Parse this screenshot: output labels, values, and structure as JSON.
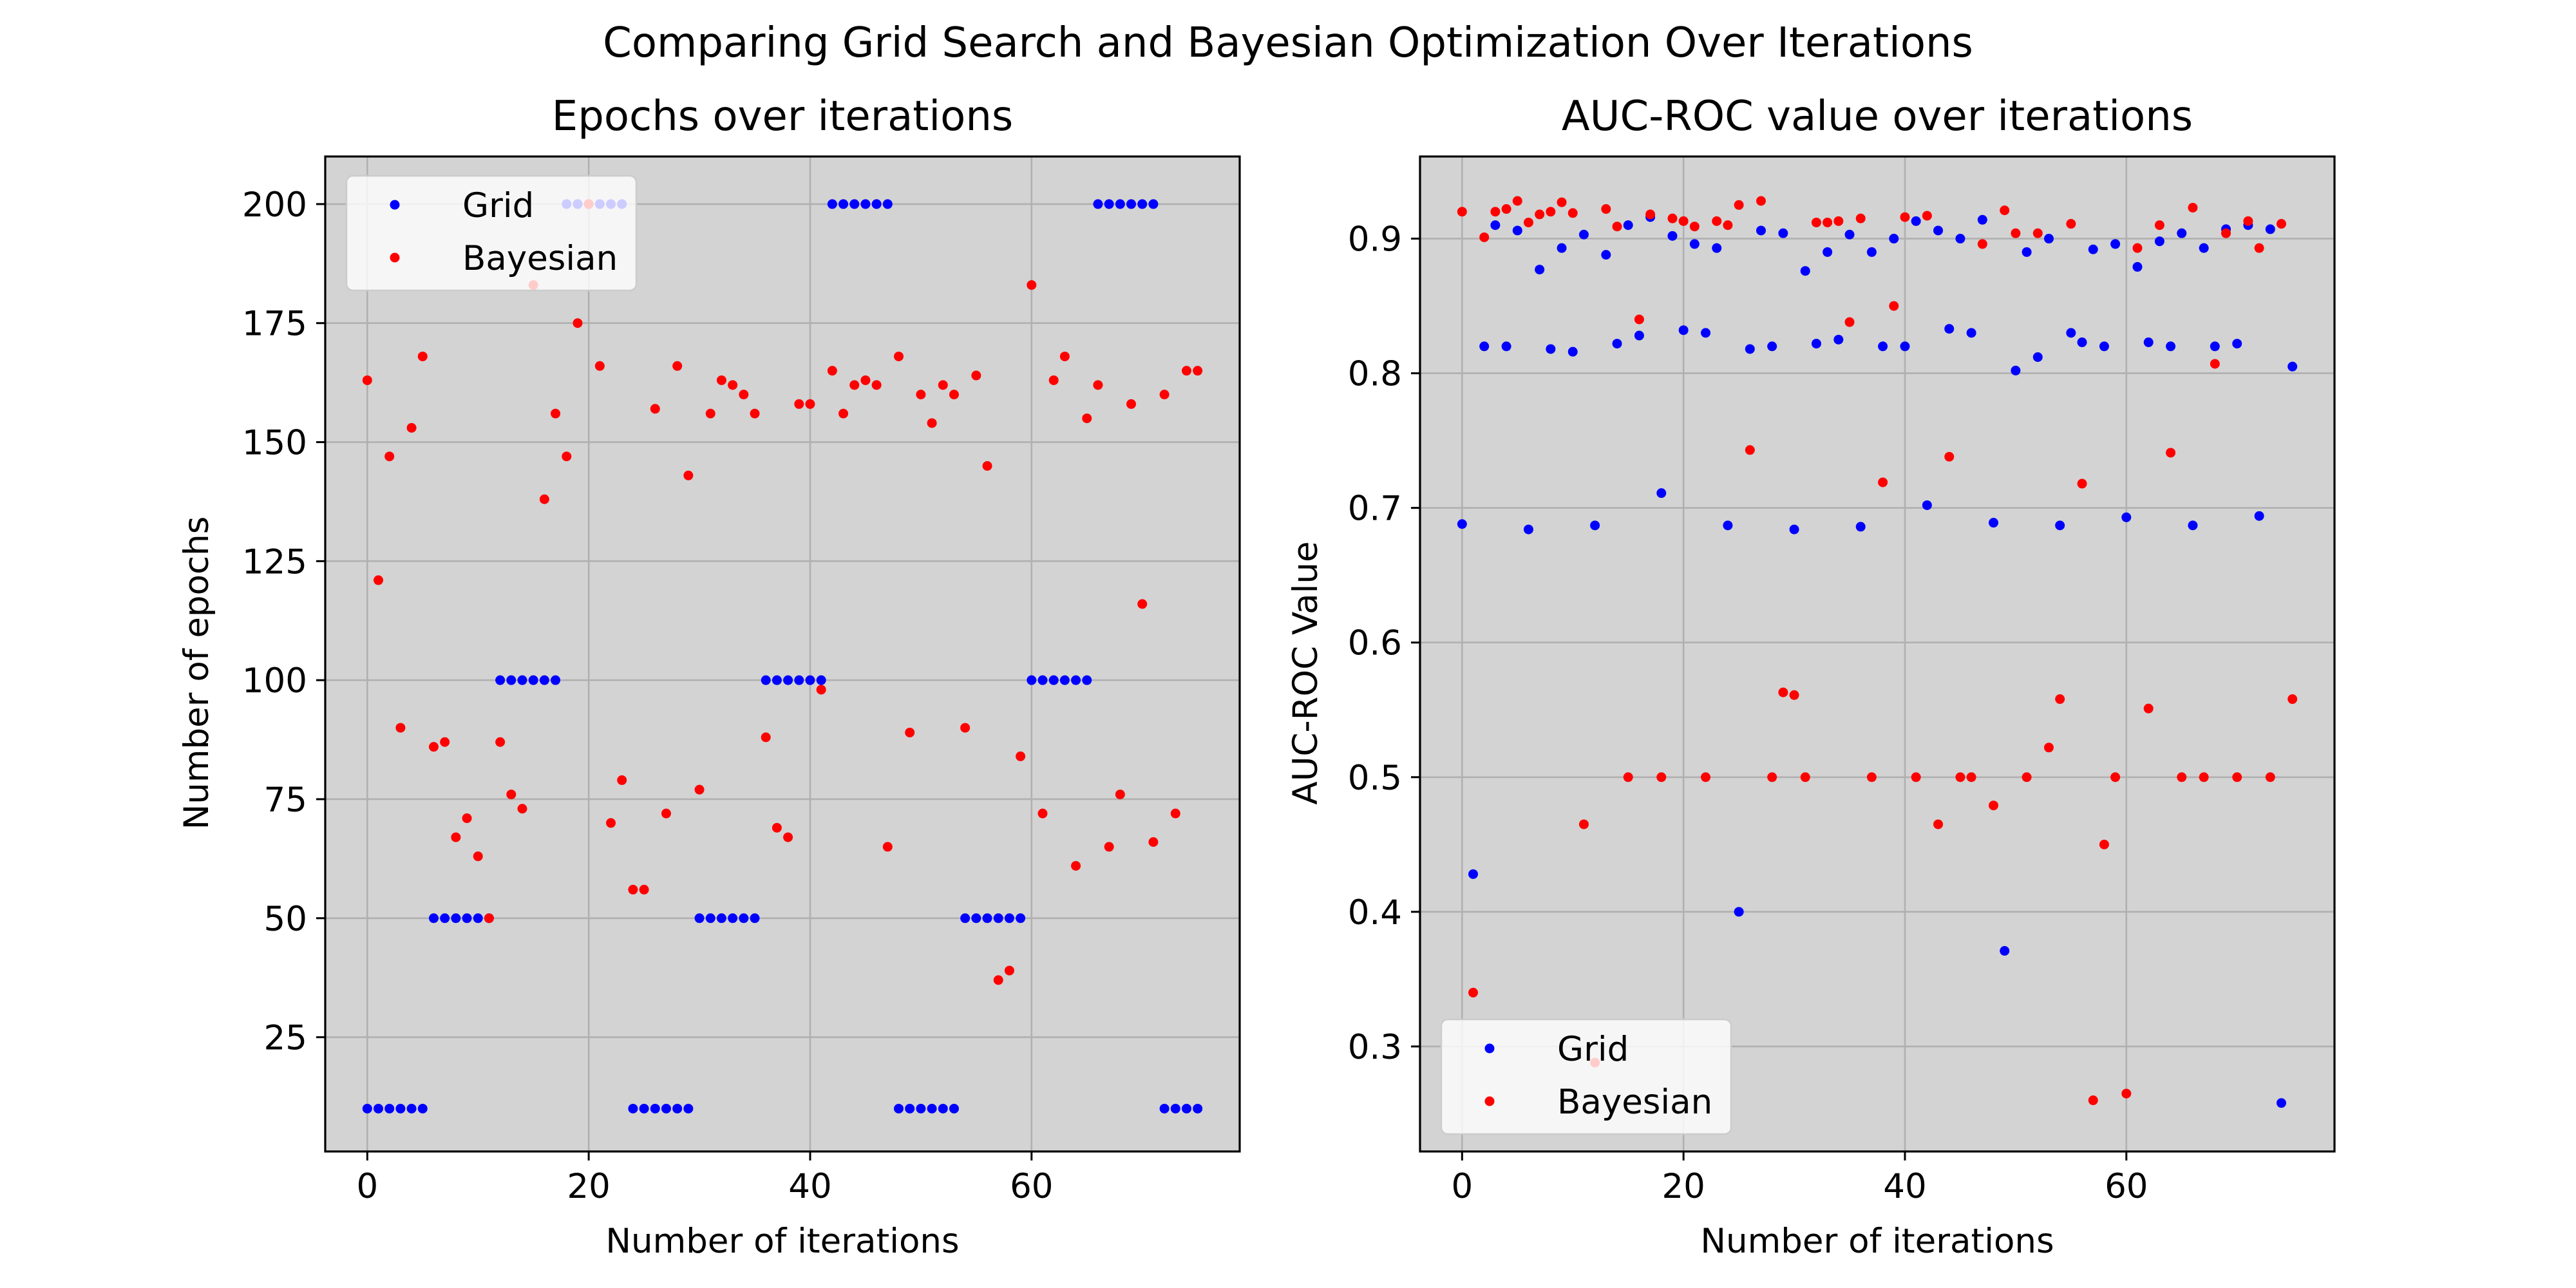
{
  "figure_title": "Comparing Grid Search and Bayesian Optimization Over Iterations",
  "colors": {
    "grid": "#0000ff",
    "bayesian": "#ff0000",
    "axes_bg": "#d3d3d3",
    "gridline": "#b0b0b0"
  },
  "chart_data": [
    {
      "type": "scatter",
      "title": "Epochs over iterations",
      "xlabel": "Number of iterations",
      "ylabel": "Number of epochs",
      "xlim": [
        -3.8,
        78.8
      ],
      "ylim": [
        1,
        210
      ],
      "xticks": [
        0,
        20,
        40,
        60
      ],
      "yticks": [
        25,
        50,
        75,
        100,
        125,
        150,
        175,
        200
      ],
      "grid": true,
      "legend": "top-left",
      "series": [
        {
          "name": "Grid",
          "color": "#0000ff",
          "x": [
            0,
            1,
            2,
            3,
            4,
            5,
            6,
            7,
            8,
            9,
            10,
            11,
            12,
            13,
            14,
            15,
            16,
            17,
            18,
            19,
            20,
            21,
            22,
            23,
            24,
            25,
            26,
            27,
            28,
            29,
            30,
            31,
            32,
            33,
            34,
            35,
            36,
            37,
            38,
            39,
            40,
            41,
            42,
            43,
            44,
            45,
            46,
            47,
            48,
            49,
            50,
            51,
            52,
            53,
            54,
            55,
            56,
            57,
            58,
            59,
            60,
            61,
            62,
            63,
            64,
            65,
            66,
            67,
            68,
            69,
            70,
            71,
            72,
            73,
            74,
            75
          ],
          "y": [
            10,
            10,
            10,
            10,
            10,
            10,
            50,
            50,
            50,
            50,
            50,
            50,
            100,
            100,
            100,
            100,
            100,
            100,
            200,
            200,
            200,
            200,
            200,
            200,
            10,
            10,
            10,
            10,
            10,
            10,
            50,
            50,
            50,
            50,
            50,
            50,
            100,
            100,
            100,
            100,
            100,
            100,
            200,
            200,
            200,
            200,
            200,
            200,
            10,
            10,
            10,
            10,
            10,
            10,
            50,
            50,
            50,
            50,
            50,
            50,
            100,
            100,
            100,
            100,
            100,
            100,
            200,
            200,
            200,
            200,
            200,
            200,
            10,
            10,
            10,
            10
          ]
        },
        {
          "name": "Bayesian",
          "color": "#ff0000",
          "x": [
            0,
            1,
            2,
            3,
            4,
            5,
            6,
            7,
            8,
            9,
            10,
            11,
            12,
            13,
            14,
            15,
            16,
            17,
            18,
            19,
            20,
            21,
            22,
            23,
            24,
            25,
            26,
            27,
            28,
            29,
            30,
            31,
            32,
            33,
            34,
            35,
            36,
            37,
            38,
            39,
            40,
            41,
            42,
            43,
            44,
            45,
            46,
            47,
            48,
            49,
            50,
            51,
            52,
            53,
            54,
            55,
            56,
            57,
            58,
            59,
            60,
            61,
            62,
            63,
            64,
            65,
            66,
            67,
            68,
            69,
            70,
            71,
            72,
            73,
            74,
            75
          ],
          "y": [
            163,
            121,
            147,
            90,
            153,
            168,
            86,
            87,
            67,
            71,
            63,
            50,
            87,
            76,
            73,
            183,
            138,
            156,
            147,
            175,
            200,
            166,
            70,
            79,
            56,
            56,
            157,
            72,
            166,
            143,
            77,
            156,
            163,
            162,
            160,
            156,
            88,
            69,
            67,
            158,
            158,
            98,
            165,
            156,
            162,
            163,
            162,
            65,
            168,
            89,
            160,
            154,
            162,
            160,
            90,
            164,
            145,
            37,
            39,
            84,
            183,
            72,
            163,
            168,
            61,
            155,
            162,
            65,
            76,
            158,
            116,
            66,
            160,
            72,
            165,
            165
          ]
        }
      ]
    },
    {
      "type": "scatter",
      "title": "AUC-ROC value over iterations",
      "xlabel": "Number of iterations",
      "ylabel": "AUC-ROC Value",
      "xlim": [
        -3.8,
        78.8
      ],
      "ylim": [
        0.222,
        0.961
      ],
      "xticks": [
        0,
        20,
        40,
        60
      ],
      "yticks": [
        0.3,
        0.4,
        0.5,
        0.6,
        0.7,
        0.8,
        0.9
      ],
      "grid": true,
      "legend": "bottom-left",
      "series": [
        {
          "name": "Grid",
          "color": "#0000ff",
          "x": [
            0,
            1,
            2,
            3,
            4,
            5,
            6,
            7,
            8,
            9,
            10,
            11,
            12,
            13,
            14,
            15,
            16,
            17,
            18,
            19,
            20,
            21,
            22,
            23,
            24,
            25,
            26,
            27,
            28,
            29,
            30,
            31,
            32,
            33,
            34,
            35,
            36,
            37,
            38,
            39,
            40,
            41,
            42,
            43,
            44,
            45,
            46,
            47,
            48,
            49,
            50,
            51,
            52,
            53,
            54,
            55,
            56,
            57,
            58,
            59,
            60,
            61,
            62,
            63,
            64,
            65,
            66,
            67,
            68,
            69,
            70,
            71,
            72,
            73,
            74,
            75
          ],
          "y": [
            0.688,
            0.428,
            0.82,
            0.91,
            0.82,
            0.906,
            0.684,
            0.877,
            0.818,
            0.893,
            0.816,
            0.903,
            0.687,
            0.888,
            0.822,
            0.91,
            0.828,
            0.916,
            0.711,
            0.902,
            0.832,
            0.896,
            0.83,
            0.893,
            0.687,
            0.4,
            0.818,
            0.906,
            0.82,
            0.904,
            0.684,
            0.876,
            0.822,
            0.89,
            0.825,
            0.903,
            0.686,
            0.89,
            0.82,
            0.9,
            0.82,
            0.913,
            0.702,
            0.906,
            0.833,
            0.9,
            0.83,
            0.914,
            0.689,
            0.371,
            0.802,
            0.89,
            0.812,
            0.9,
            0.687,
            0.83,
            0.823,
            0.892,
            0.82,
            0.896,
            0.693,
            0.879,
            0.823,
            0.898,
            0.82,
            0.904,
            0.687,
            0.893,
            0.82,
            0.907,
            0.822,
            0.91,
            0.694,
            0.907,
            0.258,
            0.805
          ]
        },
        {
          "name": "Bayesian",
          "color": "#ff0000",
          "x": [
            0,
            1,
            2,
            3,
            4,
            5,
            6,
            7,
            8,
            9,
            10,
            11,
            12,
            13,
            14,
            15,
            16,
            17,
            18,
            19,
            20,
            21,
            22,
            23,
            24,
            25,
            26,
            27,
            28,
            29,
            30,
            31,
            32,
            33,
            34,
            35,
            36,
            37,
            38,
            39,
            40,
            41,
            42,
            43,
            44,
            45,
            46,
            47,
            48,
            49,
            50,
            51,
            52,
            53,
            54,
            55,
            56,
            57,
            58,
            59,
            60,
            61,
            62,
            63,
            64,
            65,
            66,
            67,
            68,
            69,
            70,
            71,
            72,
            73,
            74,
            75
          ],
          "y": [
            0.92,
            0.34,
            0.901,
            0.92,
            0.922,
            0.928,
            0.912,
            0.918,
            0.92,
            0.927,
            0.919,
            0.465,
            0.288,
            0.922,
            0.909,
            0.5,
            0.84,
            0.918,
            0.5,
            0.915,
            0.913,
            0.909,
            0.5,
            0.913,
            0.91,
            0.925,
            0.743,
            0.928,
            0.5,
            0.563,
            0.561,
            0.5,
            0.912,
            0.912,
            0.913,
            0.838,
            0.915,
            0.5,
            0.719,
            0.85,
            0.916,
            0.5,
            0.917,
            0.465,
            0.738,
            0.5,
            0.5,
            0.896,
            0.479,
            0.921,
            0.904,
            0.5,
            0.904,
            0.522,
            0.558,
            0.911,
            0.718,
            0.26,
            0.45,
            0.5,
            0.265,
            0.893,
            0.551,
            0.91,
            0.741,
            0.5,
            0.923,
            0.5,
            0.807,
            0.904,
            0.5,
            0.913,
            0.893,
            0.5,
            0.911,
            0.558
          ]
        }
      ]
    }
  ]
}
